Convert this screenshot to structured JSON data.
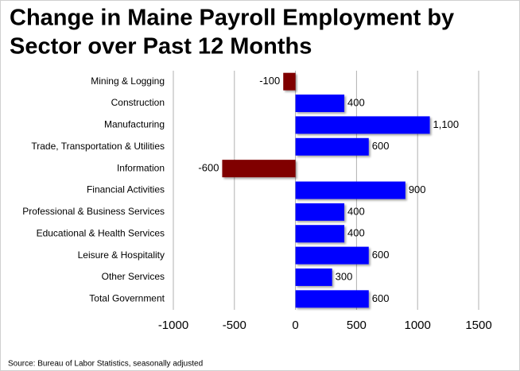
{
  "chart_data": {
    "type": "hbar",
    "title": [
      "Change in Maine Payroll Employment by",
      "Sector over Past 12 Months"
    ],
    "categories": [
      "Mining & Logging",
      "Construction",
      "Manufacturing",
      "Trade, Transportation & Utilities",
      "Information",
      "Financial Activities",
      "Professional & Business Services",
      "Educational & Health Services",
      "Leisure & Hospitality",
      "Other Services",
      "Total Government"
    ],
    "values": [
      -100,
      400,
      1100,
      600,
      -600,
      900,
      400,
      400,
      600,
      300,
      600
    ],
    "value_labels": [
      "-100",
      "400",
      "1,100",
      "600",
      "-600",
      "900",
      "400",
      "400",
      "600",
      "300",
      "600"
    ],
    "color": "#0000ff",
    "negative_color": "#800000",
    "xlim": [
      -1000,
      1500
    ],
    "xticks": [
      -1000,
      -500,
      0,
      500,
      1000,
      1500
    ],
    "grid": true,
    "source": "Source: Bureau of Labor Statistics, seasonally adjusted"
  }
}
